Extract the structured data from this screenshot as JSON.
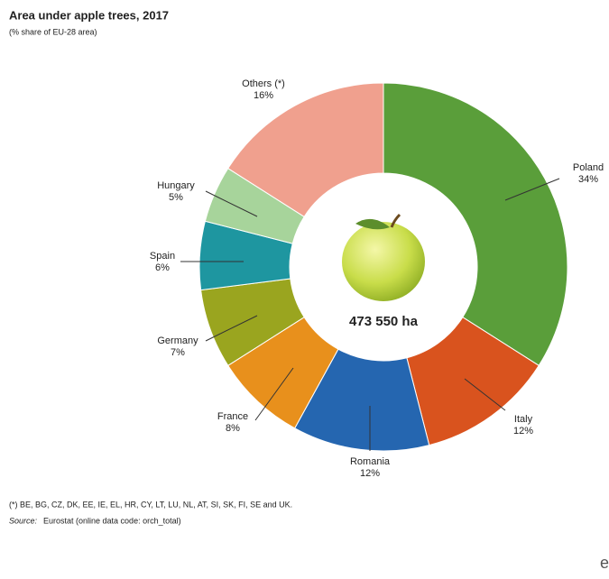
{
  "chart_data": {
    "type": "donut",
    "title": "Area under apple trees, 2017",
    "subtitle": "(% share of EU-28 area)",
    "categories": [
      "Poland",
      "Italy",
      "Romania",
      "France",
      "Germany",
      "Spain",
      "Hungary",
      "Others (*)"
    ],
    "values": [
      34,
      12,
      12,
      8,
      7,
      6,
      5,
      16
    ],
    "value_labels": [
      "34%",
      "12%",
      "12%",
      "8%",
      "7%",
      "6%",
      "5%",
      "16%"
    ],
    "colors": [
      "#5a9e3a",
      "#d9531e",
      "#2566b0",
      "#e8901c",
      "#9aa51f",
      "#1e96a0",
      "#a7d49b",
      "#f0a08e"
    ],
    "center_label": "473 550 ha",
    "footnote": "(*) BE, BG, CZ, DK, EE, IE, EL, HR, CY, LT, LU, NL, AT, SI, SK, FI, SE and UK.",
    "source_label": "Source:",
    "source_text": "Eurostat (online data code: orch_total)",
    "logo": "e"
  }
}
